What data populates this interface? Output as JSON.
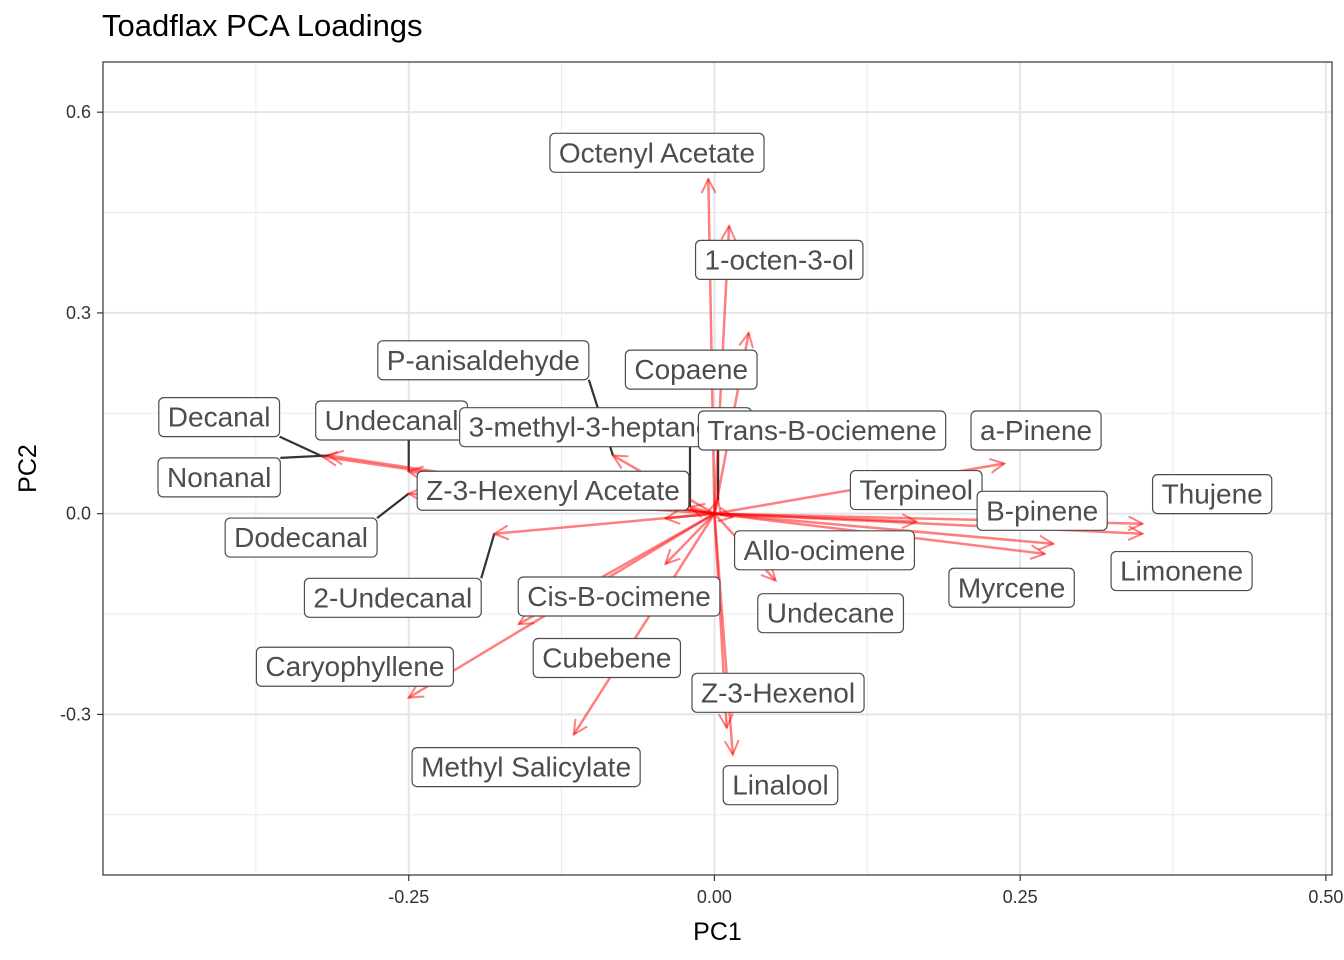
{
  "chart_data": {
    "type": "scatter",
    "title": "Toadflax PCA Loadings",
    "xlabel": "PC1",
    "ylabel": "PC2",
    "xlim": [
      -0.5,
      0.505
    ],
    "ylim": [
      -0.54,
      0.675
    ],
    "x_ticks": [
      {
        "value": -0.25,
        "label": "-0.25"
      },
      {
        "value": 0,
        "label": "0.00"
      },
      {
        "value": 0.25,
        "label": "0.25"
      },
      {
        "value": 0.5,
        "label": "0.50"
      }
    ],
    "y_ticks": [
      {
        "value": -0.3,
        "label": "-0.3"
      },
      {
        "value": 0,
        "label": "0.0"
      },
      {
        "value": 0.3,
        "label": "0.3"
      },
      {
        "value": 0.6,
        "label": "0.6"
      }
    ],
    "grid": true,
    "arrow_color": "#ff0000",
    "points": [
      {
        "name": "Octenyl Acetate",
        "x": -0.005,
        "y": 0.5,
        "lx": -0.047,
        "ly": 0.54
      },
      {
        "name": "1-octen-3-ol",
        "x": 0.012,
        "y": 0.43,
        "lx": 0.053,
        "ly": 0.38
      },
      {
        "name": "Copaene",
        "x": 0.028,
        "y": 0.27,
        "lx": -0.019,
        "ly": 0.216
      },
      {
        "name": "P-anisaldehyde",
        "x": -0.083,
        "y": 0.087,
        "lx": -0.189,
        "ly": 0.23
      },
      {
        "name": "Undecanal",
        "x": -0.25,
        "y": 0.063,
        "lx": -0.264,
        "ly": 0.14
      },
      {
        "name": "3-methyl-3-heptanone",
        "x": -0.02,
        "y": 0.01,
        "lx": -0.089,
        "ly": 0.13
      },
      {
        "name": "Trans-B-ociemene",
        "x": 0.003,
        "y": 0.02,
        "lx": 0.088,
        "ly": 0.125
      },
      {
        "name": "a-Pinene",
        "x": 0.237,
        "y": 0.075,
        "lx": 0.263,
        "ly": 0.125
      },
      {
        "name": "Decanal",
        "x": -0.32,
        "y": 0.085,
        "lx": -0.405,
        "ly": 0.145
      },
      {
        "name": "Nonanal",
        "x": -0.315,
        "y": 0.087,
        "lx": -0.405,
        "ly": 0.055
      },
      {
        "name": "Z-3-Hexenyl Acetate",
        "x": -0.04,
        "y": -0.007,
        "lx": -0.132,
        "ly": 0.035
      },
      {
        "name": "Terpineol",
        "x": 0.165,
        "y": -0.012,
        "lx": 0.165,
        "ly": 0.036
      },
      {
        "name": "B-pinene",
        "x": 0.277,
        "y": -0.045,
        "lx": 0.268,
        "ly": 0.005
      },
      {
        "name": "Thujene",
        "x": 0.35,
        "y": -0.015,
        "lx": 0.407,
        "ly": 0.03
      },
      {
        "name": "Dodecanal",
        "x": -0.25,
        "y": 0.03,
        "lx": -0.338,
        "ly": -0.035
      },
      {
        "name": "Allo-ocimene",
        "x": 0.015,
        "y": -0.005,
        "lx": 0.09,
        "ly": -0.054
      },
      {
        "name": "Limonene",
        "x": 0.35,
        "y": -0.03,
        "lx": 0.382,
        "ly": -0.085
      },
      {
        "name": "Myrcene",
        "x": 0.27,
        "y": -0.06,
        "lx": 0.243,
        "ly": -0.11
      },
      {
        "name": "2-Undecanal",
        "x": -0.18,
        "y": -0.03,
        "lx": -0.263,
        "ly": -0.125
      },
      {
        "name": "Cis-B-ocimene",
        "x": -0.04,
        "y": -0.075,
        "lx": -0.078,
        "ly": -0.123
      },
      {
        "name": "Undecane",
        "x": 0.05,
        "y": -0.1,
        "lx": 0.095,
        "ly": -0.148
      },
      {
        "name": "Caryophyllene",
        "x": -0.25,
        "y": -0.275,
        "lx": -0.294,
        "ly": -0.228
      },
      {
        "name": "Cubebene",
        "x": -0.16,
        "y": -0.165,
        "lx": -0.088,
        "ly": -0.215
      },
      {
        "name": "Z-3-Hexenol",
        "x": 0.01,
        "y": -0.32,
        "lx": 0.052,
        "ly": -0.267
      },
      {
        "name": "Methyl Salicylate",
        "x": -0.115,
        "y": -0.33,
        "lx": -0.154,
        "ly": -0.378
      },
      {
        "name": "Linalool",
        "x": 0.015,
        "y": -0.36,
        "lx": 0.054,
        "ly": -0.405
      }
    ]
  }
}
